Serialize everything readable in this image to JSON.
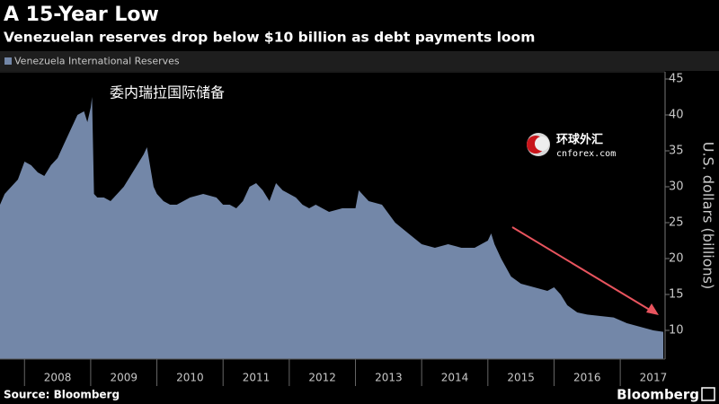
{
  "chart_data": {
    "type": "area",
    "title": "A 15-Year Low",
    "subtitle": "Venezuelan reserves drop below $10 billion as debt payments loom",
    "y_axis_label": "U.S. dollars (billions)",
    "source": "Source: Bloomberg",
    "logo": "Bloomberg",
    "annotation": "委内瑞拉国际储备",
    "watermark": [
      "环球外汇",
      "cnforex.com"
    ],
    "legend_position": "top-left",
    "grid": false,
    "xlim": [
      2007.63,
      2017.65
    ],
    "ylim": [
      6,
      46
    ],
    "yticks": [
      10,
      15,
      20,
      25,
      30,
      35,
      40,
      45
    ],
    "xticks": [
      {
        "value": 2008.5,
        "label": "2008"
      },
      {
        "value": 2009.5,
        "label": "2009"
      },
      {
        "value": 2010.5,
        "label": "2010"
      },
      {
        "value": 2011.5,
        "label": "2011"
      },
      {
        "value": 2012.5,
        "label": "2012"
      },
      {
        "value": 2013.5,
        "label": "2013"
      },
      {
        "value": 2014.5,
        "label": "2014"
      },
      {
        "value": 2015.5,
        "label": "2015"
      },
      {
        "value": 2016.5,
        "label": "2016"
      },
      {
        "value": 2017.5,
        "label": "2017"
      }
    ],
    "series": [
      {
        "name": "Venezuela International Reserves",
        "color": "#7387a8",
        "x": [
          2007.63,
          2007.7,
          2007.8,
          2007.9,
          2008.0,
          2008.1,
          2008.2,
          2008.3,
          2008.4,
          2008.5,
          2008.6,
          2008.7,
          2008.8,
          2008.9,
          2008.95,
          2009.0,
          2009.02,
          2009.05,
          2009.1,
          2009.2,
          2009.3,
          2009.4,
          2009.5,
          2009.6,
          2009.7,
          2009.8,
          2009.85,
          2009.95,
          2010.0,
          2010.1,
          2010.2,
          2010.3,
          2010.5,
          2010.7,
          2010.9,
          2011.0,
          2011.1,
          2011.2,
          2011.3,
          2011.4,
          2011.5,
          2011.6,
          2011.7,
          2011.8,
          2011.9,
          2012.0,
          2012.1,
          2012.2,
          2012.3,
          2012.4,
          2012.6,
          2012.8,
          2013.0,
          2013.05,
          2013.2,
          2013.4,
          2013.6,
          2013.8,
          2014.0,
          2014.2,
          2014.4,
          2014.6,
          2014.8,
          2015.0,
          2015.05,
          2015.1,
          2015.2,
          2015.35,
          2015.5,
          2015.7,
          2015.9,
          2016.0,
          2016.1,
          2016.2,
          2016.35,
          2016.5,
          2016.7,
          2016.9,
          2017.1,
          2017.3,
          2017.5,
          2017.65
        ],
        "values": [
          27.5,
          29,
          30,
          31,
          33.5,
          33,
          32,
          31.5,
          33,
          34,
          36,
          38,
          40,
          40.5,
          39,
          41,
          42.5,
          29,
          28.5,
          28.5,
          28,
          29,
          30,
          31.5,
          33,
          34.5,
          35.5,
          30,
          29,
          28,
          27.5,
          27.5,
          28.5,
          29,
          28.5,
          27.5,
          27.5,
          27,
          28,
          30,
          30.5,
          29.5,
          28,
          30.5,
          29.5,
          29,
          28.5,
          27.5,
          27,
          27.5,
          26.5,
          27,
          27,
          29.5,
          28,
          27.5,
          25,
          23.5,
          22,
          21.5,
          22,
          21.5,
          21.5,
          22.5,
          23.5,
          22,
          20,
          17.5,
          16.5,
          16,
          15.5,
          16,
          15,
          13.5,
          12.5,
          12.2,
          12,
          11.8,
          11,
          10.5,
          10,
          9.8
        ]
      }
    ]
  }
}
